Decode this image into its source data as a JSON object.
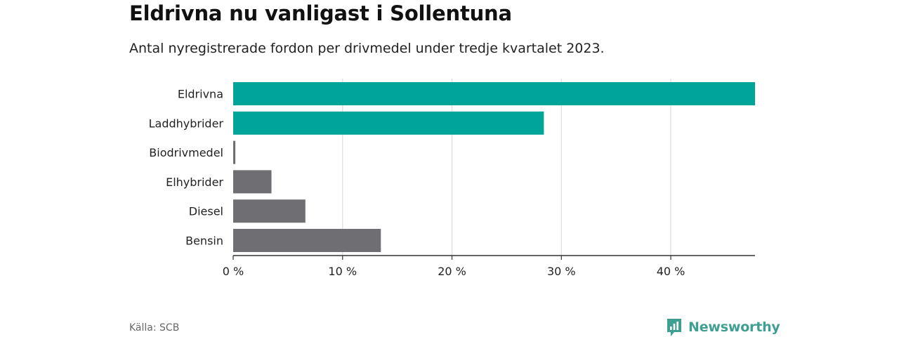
{
  "header": {
    "title": "Eldrivna nu vanligast i Sollentuna",
    "subtitle": "Antal nyregistrerade fordon per drivmedel under tredje kvartalet 2023."
  },
  "footer": {
    "source": "Källa: SCB",
    "brand": "Newsworthy"
  },
  "colors": {
    "highlight": "#00a499",
    "neutral": "#6f6e73",
    "grid": "#dddddd",
    "axis": "#333333",
    "brand": "#3f9f93"
  },
  "icons": {
    "brand_logo": "newsworthy-logo-icon"
  },
  "chart_data": {
    "type": "bar",
    "orientation": "horizontal",
    "categories": [
      "Eldrivna",
      "Laddhybrider",
      "Biodrivmedel",
      "Elhybrider",
      "Diesel",
      "Bensin"
    ],
    "values": [
      47.7,
      28.4,
      0.2,
      3.5,
      6.6,
      13.5
    ],
    "highlighted": [
      true,
      true,
      false,
      false,
      false,
      false
    ],
    "xlim": [
      0,
      47.7
    ],
    "xticks": [
      0,
      10,
      20,
      30,
      40
    ],
    "xtick_labels": [
      "0 %",
      "10 %",
      "20 %",
      "30 %",
      "40 %"
    ],
    "xlabel": "",
    "ylabel": "",
    "grid": true,
    "unit": "%"
  }
}
